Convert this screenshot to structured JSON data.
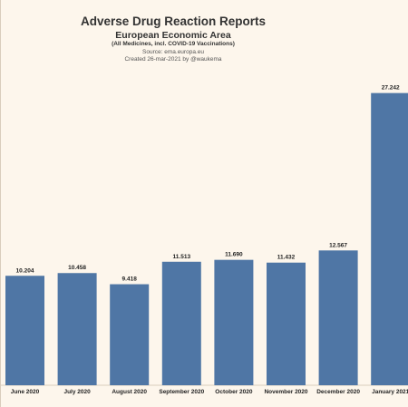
{
  "header": {
    "title": "Adverse Drug Reaction Reports",
    "subtitle": "European Economic Area",
    "note": "(All Medicines, incl. COVID-19 Vaccinations)",
    "source": "Source: ema.europa.eu",
    "created": "Created 26-mar-2021 by @waukema"
  },
  "chart_data": {
    "type": "bar",
    "title": "Adverse Drug Reaction Reports",
    "categories": [
      "June 2020",
      "July 2020",
      "August 2020",
      "September 2020",
      "October 2020",
      "November 2020",
      "December 2020",
      "January 2021"
    ],
    "values": [
      10204,
      10458,
      9418,
      11513,
      11690,
      11432,
      12567,
      27242
    ],
    "value_labels": [
      "10.204",
      "10.458",
      "9.418",
      "11.513",
      "11.690",
      "11.432",
      "12.567",
      "27.242"
    ],
    "xlabel": "",
    "ylabel": "",
    "ylim": [
      0,
      30000
    ],
    "grid": false,
    "legend": "none",
    "bar_color": "#4f76a5",
    "background_color": "#fdf6ec"
  }
}
